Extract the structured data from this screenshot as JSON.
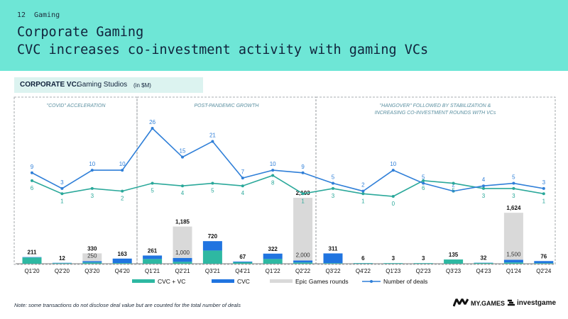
{
  "header": {
    "page_number": "12",
    "section": "Gaming",
    "title_line1": "Corporate Gaming",
    "title_line2": "CVC increases co-investment activity with gaming VCs"
  },
  "subheader": {
    "bold": "CORPORATE VC:",
    "regular": "Gaming Studios",
    "unit": "(in $M)"
  },
  "colors": {
    "header_bg": "#6ee6d6",
    "cvc_vc": "#2eb8a2",
    "cvc": "#2074e0",
    "epic": "#d9d9d9",
    "line_deals": "#2f7fd8",
    "line_teal": "#2aa89a"
  },
  "chart_data": {
    "type": "bar",
    "categories": [
      "Q1'20",
      "Q2'20",
      "Q3'20",
      "Q4'20",
      "Q1'21",
      "Q2'21",
      "Q3'21",
      "Q4'21",
      "Q1'22",
      "Q2'22",
      "Q3'22",
      "Q4'22",
      "Q1'23",
      "Q2'23",
      "Q3'23",
      "Q4'23",
      "Q1'24",
      "Q2'24"
    ],
    "totals": [
      211,
      12,
      330,
      163,
      261,
      1185,
      720,
      67,
      322,
      2103,
      311,
      6,
      3,
      3,
      135,
      32,
      1624,
      76
    ],
    "series": [
      {
        "name": "CVC + VC",
        "values": [
          200,
          2,
          40,
          20,
          150,
          60,
          420,
          45,
          150,
          40,
          0,
          2,
          1,
          1,
          135,
          25,
          40,
          10
        ]
      },
      {
        "name": "CVC",
        "values": [
          11,
          10,
          40,
          143,
          111,
          125,
          300,
          22,
          172,
          63,
          311,
          4,
          2,
          2,
          0,
          7,
          84,
          66
        ]
      },
      {
        "name": "Epic Games rounds",
        "values": [
          0,
          0,
          250,
          0,
          0,
          1000,
          0,
          0,
          0,
          2000,
          0,
          0,
          0,
          0,
          0,
          0,
          1500,
          0
        ],
        "labels": [
          "",
          "",
          "250",
          "",
          "",
          "1,000",
          "",
          "",
          "",
          "2,000",
          "",
          "",
          "",
          "",
          "",
          "",
          "1,500",
          ""
        ]
      }
    ],
    "lines": [
      {
        "name": "Number of deals",
        "values": [
          9,
          3,
          10,
          10,
          26,
          15,
          21,
          7,
          10,
          9,
          5,
          2,
          10,
          5,
          2,
          4,
          5,
          3
        ]
      },
      {
        "name": "",
        "values": [
          6,
          1,
          3,
          2,
          5,
          4,
          5,
          4,
          8,
          1,
          3,
          1,
          0,
          6,
          5,
          3,
          3,
          1
        ]
      }
    ],
    "period_labels": [
      "\"COVID\" ACCELERATION",
      "POST-PANDEMIC GROWTH",
      "\"HANGOVER\" FOLLOWED BY STABILIZATION & INCREASING CO-INVESTMENT ROUNDS WITH VCs"
    ],
    "legend_position": "bottom",
    "legend": [
      "CVC + VC",
      "CVC",
      "Epic Games rounds",
      "Number of deals"
    ]
  },
  "note": "Note: some transactions do not disclose deal value but are counted for the total number of deals",
  "logos": {
    "mygames": "MY.GAMES",
    "investgame": "investgame"
  }
}
